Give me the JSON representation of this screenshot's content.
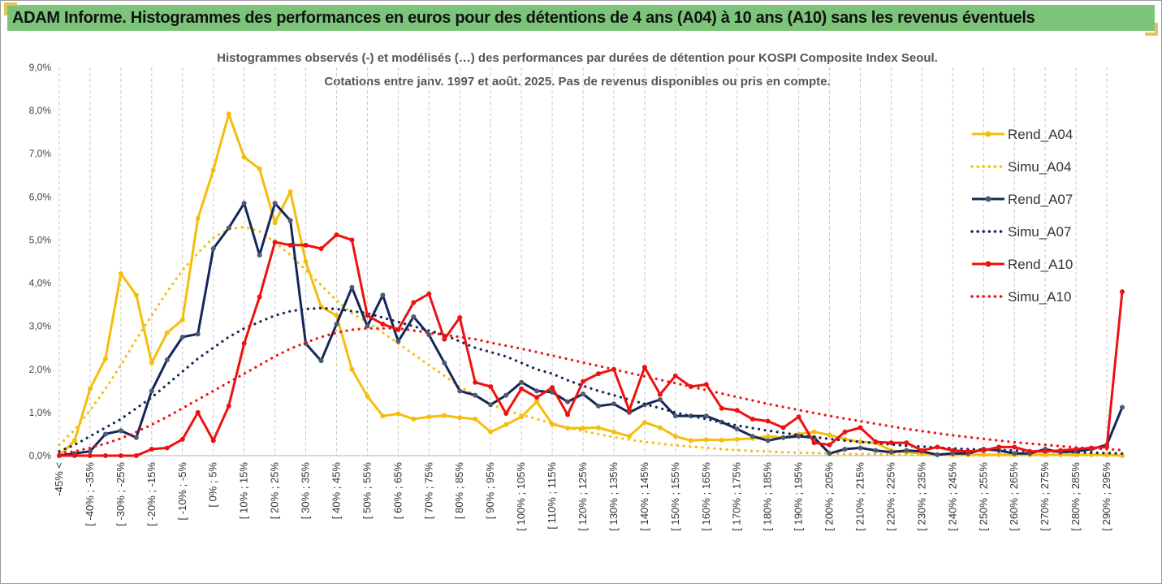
{
  "header": {
    "title": "ADAM Informe. Histogrammes des performances en euros pour des détentions de 4 ans (A04) à 10 ans (A10) sans les revenus éventuels"
  },
  "colors": {
    "banner": "#7cc47a",
    "A04": "#f5bd0c",
    "A07": "#13275a",
    "A07_marker": "#4d5a70",
    "A10": "#ee1111",
    "grid": "#c8c8c8"
  },
  "chart_data": {
    "type": "line",
    "title": "",
    "subtitle": [
      "Histogrammes observés (-) et modélisés (…) des performances par durées de détention pour KOSPI Composite Index Seoul.",
      "Cotations entre janv. 1997 et août. 2025. Pas de revenus disponibles ou pris en compte."
    ],
    "xlabel": "",
    "ylabel": "",
    "ylim": [
      0,
      9
    ],
    "y_ticks": [
      "0,0%",
      "1,0%",
      "2,0%",
      "3,0%",
      "4,0%",
      "5,0%",
      "6,0%",
      "7,0%",
      "8,0%",
      "9,0%"
    ],
    "x_tick_labels": [
      "-45% <",
      "[ -40% ; -35%",
      "[ -30% ; -25%",
      "[ -20% ; -15%",
      "[ -10% ; -5%",
      "[ 0% ; 5%",
      "[ 10% ; 15%",
      "[ 20% ; 25%",
      "[ 30% ; 35%",
      "[ 40% ; 45%",
      "[ 50% ; 55%",
      "[ 60% ; 65%",
      "[ 70% ; 75%",
      "[ 80% ; 85%",
      "[ 90% ; 95%",
      "[ 100% ; 105%",
      "[ 110% ; 115%",
      "[ 120% ; 125%",
      "[ 130% ; 135%",
      "[ 140% ; 145%",
      "[ 150% ; 155%",
      "[ 160% ; 165%",
      "[ 170% ; 175%",
      "[ 180% ; 185%",
      "[ 190% ; 195%",
      "[ 200% ; 205%",
      "[ 210% ; 215%",
      "[ 220% ; 225%",
      "[ 230% ; 235%",
      "[ 240% ; 245%",
      "[ 250% ; 255%",
      "[ 260% ; 265%",
      "[ 270% ; 275%",
      "[ 280% ; 285%",
      "[ 290% ; 295%"
    ],
    "legend_position": "right",
    "grid": "vertical dashed",
    "series": [
      {
        "name": "Rend_A04",
        "style": "solid",
        "color": "#f5bd0c",
        "values": [
          0.0,
          0.35,
          1.55,
          2.25,
          4.22,
          3.72,
          2.15,
          2.85,
          3.15,
          5.5,
          6.62,
          7.92,
          6.92,
          6.65,
          5.4,
          6.12,
          4.5,
          3.45,
          3.25,
          2.0,
          1.38,
          0.92,
          0.97,
          0.85,
          0.9,
          0.93,
          0.88,
          0.85,
          0.55,
          0.72,
          0.9,
          1.25,
          0.73,
          0.64,
          0.64,
          0.65,
          0.55,
          0.45,
          0.77,
          0.65,
          0.45,
          0.35,
          0.37,
          0.36,
          0.38,
          0.4,
          0.45,
          0.42,
          0.5,
          0.55,
          0.48,
          0.38,
          0.32,
          0.3,
          0.12,
          0.08,
          0.05,
          0.03,
          0.02,
          0.02,
          0.02,
          0.02,
          0.02,
          0.02,
          0.02,
          0.02,
          0.02,
          0.02,
          0.02,
          0.0
        ]
      },
      {
        "name": "Simu_A04",
        "style": "dotted",
        "color": "#f5bd0c",
        "values": [
          0.25,
          0.6,
          1.05,
          1.55,
          2.1,
          2.7,
          3.25,
          3.8,
          4.3,
          4.7,
          5.05,
          5.25,
          5.3,
          5.2,
          4.95,
          4.65,
          4.3,
          3.95,
          3.6,
          3.3,
          3.1,
          2.85,
          2.6,
          2.35,
          2.1,
          1.85,
          1.6,
          1.4,
          1.2,
          1.05,
          0.95,
          0.85,
          0.75,
          0.65,
          0.57,
          0.5,
          0.43,
          0.37,
          0.32,
          0.28,
          0.24,
          0.21,
          0.18,
          0.15,
          0.13,
          0.11,
          0.1,
          0.08,
          0.07,
          0.06,
          0.05,
          0.04,
          0.04,
          0.03,
          0.03,
          0.02,
          0.02,
          0.02,
          0.01,
          0.01,
          0.01,
          0.01,
          0.01,
          0.01,
          0.01,
          0.01,
          0.01,
          0.01,
          0.01,
          0.01
        ]
      },
      {
        "name": "Rend_A07",
        "style": "solid",
        "color": "#13275a",
        "values": [
          0.0,
          0.05,
          0.1,
          0.5,
          0.58,
          0.42,
          1.5,
          2.22,
          2.75,
          2.82,
          4.8,
          5.28,
          5.85,
          4.65,
          5.85,
          5.45,
          2.6,
          2.2,
          3.05,
          3.9,
          3.0,
          3.72,
          2.65,
          3.22,
          2.8,
          2.15,
          1.5,
          1.4,
          1.18,
          1.4,
          1.7,
          1.5,
          1.47,
          1.25,
          1.43,
          1.15,
          1.2,
          1.0,
          1.18,
          1.3,
          0.92,
          0.92,
          0.92,
          0.78,
          0.62,
          0.45,
          0.35,
          0.42,
          0.45,
          0.42,
          0.05,
          0.15,
          0.18,
          0.12,
          0.08,
          0.12,
          0.1,
          0.02,
          0.05,
          0.05,
          0.15,
          0.12,
          0.05,
          0.05,
          0.15,
          0.08,
          0.1,
          0.15,
          0.25,
          1.12
        ]
      },
      {
        "name": "Simu_A07",
        "style": "dotted",
        "color": "#13275a",
        "values": [
          0.1,
          0.25,
          0.45,
          0.65,
          0.85,
          1.1,
          1.35,
          1.65,
          1.95,
          2.25,
          2.5,
          2.75,
          2.95,
          3.1,
          3.25,
          3.35,
          3.4,
          3.42,
          3.4,
          3.35,
          3.3,
          3.2,
          3.1,
          3.0,
          2.9,
          2.8,
          2.65,
          2.5,
          2.4,
          2.3,
          2.15,
          2.0,
          1.9,
          1.75,
          1.62,
          1.5,
          1.4,
          1.3,
          1.2,
          1.1,
          1.0,
          0.92,
          0.85,
          0.77,
          0.7,
          0.64,
          0.58,
          0.53,
          0.48,
          0.43,
          0.39,
          0.35,
          0.32,
          0.29,
          0.26,
          0.23,
          0.21,
          0.19,
          0.17,
          0.15,
          0.14,
          0.13,
          0.12,
          0.11,
          0.1,
          0.09,
          0.08,
          0.07,
          0.06,
          0.05
        ]
      },
      {
        "name": "Rend_A10",
        "style": "solid",
        "color": "#ee1111",
        "values": [
          0.0,
          0.0,
          0.0,
          0.0,
          0.0,
          0.0,
          0.15,
          0.18,
          0.38,
          1.0,
          0.35,
          1.15,
          2.6,
          3.68,
          4.95,
          4.88,
          4.88,
          4.8,
          5.12,
          5.0,
          3.25,
          3.05,
          2.92,
          3.55,
          3.75,
          2.7,
          3.2,
          1.7,
          1.6,
          0.98,
          1.55,
          1.35,
          1.58,
          0.95,
          1.72,
          1.9,
          2.0,
          1.05,
          2.05,
          1.42,
          1.85,
          1.6,
          1.65,
          1.1,
          1.05,
          0.85,
          0.8,
          0.65,
          0.9,
          0.3,
          0.25,
          0.55,
          0.65,
          0.32,
          0.3,
          0.3,
          0.12,
          0.2,
          0.12,
          0.1,
          0.12,
          0.2,
          0.2,
          0.1,
          0.1,
          0.12,
          0.15,
          0.18,
          0.2,
          3.8
        ]
      },
      {
        "name": "Simu_A10",
        "style": "dotted",
        "color": "#ee1111",
        "values": [
          0.05,
          0.1,
          0.18,
          0.28,
          0.4,
          0.55,
          0.72,
          0.9,
          1.1,
          1.3,
          1.5,
          1.7,
          1.9,
          2.1,
          2.3,
          2.48,
          2.62,
          2.75,
          2.85,
          2.92,
          2.95,
          2.95,
          2.95,
          2.9,
          2.85,
          2.8,
          2.75,
          2.7,
          2.62,
          2.55,
          2.48,
          2.4,
          2.32,
          2.24,
          2.16,
          2.08,
          2.0,
          1.92,
          1.84,
          1.76,
          1.68,
          1.6,
          1.52,
          1.44,
          1.36,
          1.28,
          1.2,
          1.13,
          1.06,
          0.99,
          0.92,
          0.86,
          0.8,
          0.74,
          0.68,
          0.62,
          0.57,
          0.52,
          0.47,
          0.43,
          0.39,
          0.35,
          0.31,
          0.28,
          0.25,
          0.22,
          0.19,
          0.17,
          0.15,
          0.13
        ]
      }
    ]
  }
}
